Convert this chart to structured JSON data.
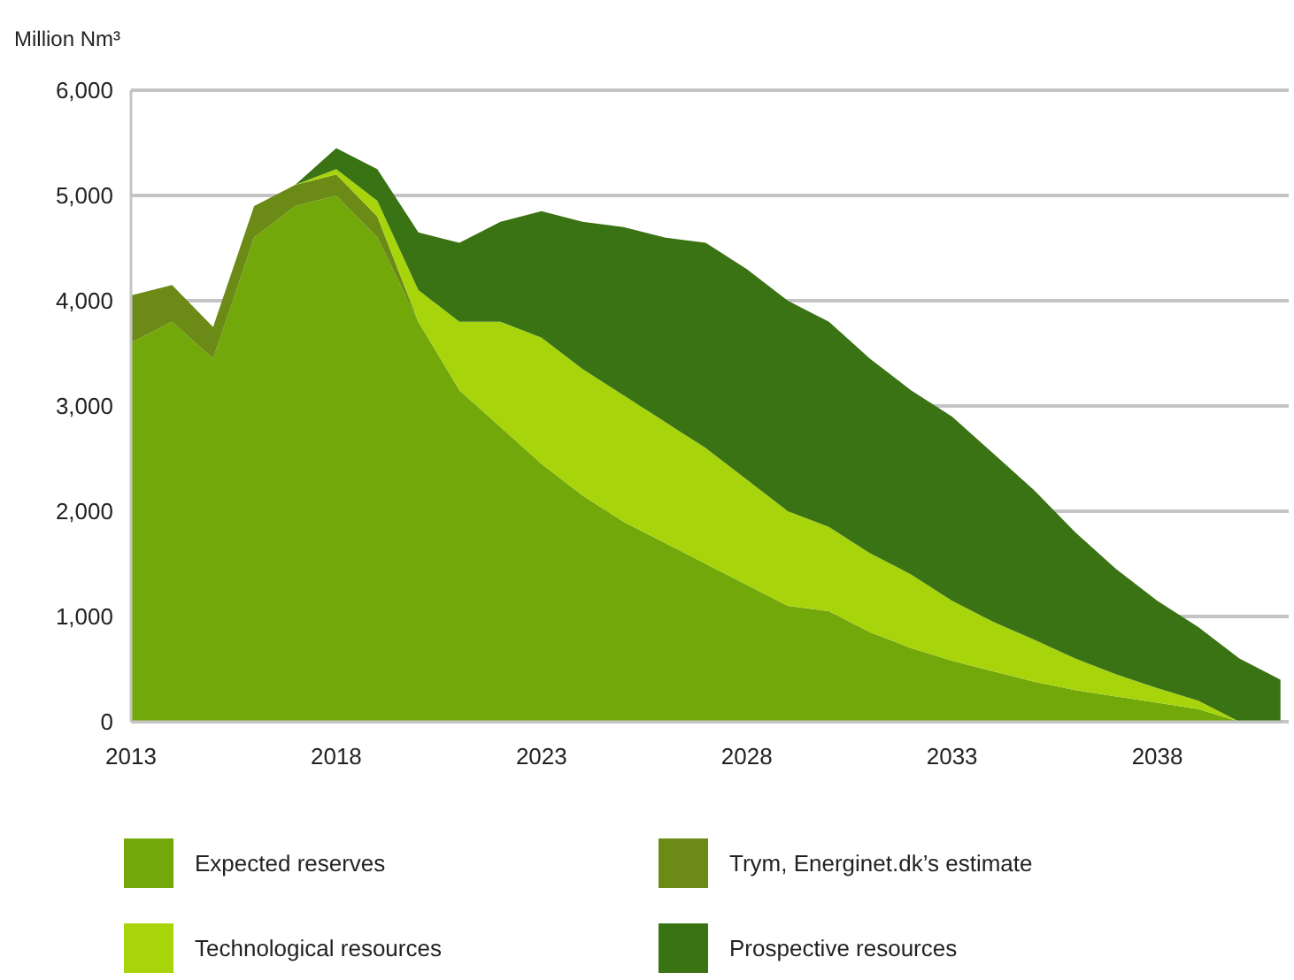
{
  "chart_data": {
    "type": "area",
    "stacked": true,
    "ylabel": "Million Nm³",
    "x": [
      2013,
      2014,
      2015,
      2016,
      2017,
      2018,
      2019,
      2020,
      2021,
      2022,
      2023,
      2024,
      2025,
      2026,
      2027,
      2028,
      2029,
      2030,
      2031,
      2032,
      2033,
      2034,
      2035,
      2036,
      2037,
      2038,
      2039,
      2040,
      2041
    ],
    "series": [
      {
        "name": "Expected reserves",
        "color": "#72a80a",
        "values": [
          3600,
          3800,
          3450,
          4600,
          4900,
          5000,
          4600,
          3800,
          3150,
          2800,
          2450,
          2150,
          1900,
          1700,
          1500,
          1300,
          1100,
          1050,
          850,
          700,
          580,
          480,
          380,
          300,
          240,
          180,
          120,
          0,
          0
        ]
      },
      {
        "name": "Trym, Energinet.dk’s estimate",
        "color": "#6b8a16",
        "values": [
          450,
          350,
          300,
          300,
          200,
          200,
          200,
          0,
          0,
          0,
          0,
          0,
          0,
          0,
          0,
          0,
          0,
          0,
          0,
          0,
          0,
          0,
          0,
          0,
          0,
          0,
          0,
          0,
          0
        ]
      },
      {
        "name": "Technological resources",
        "color": "#a8d40c",
        "values": [
          0,
          0,
          0,
          0,
          0,
          50,
          150,
          300,
          650,
          1000,
          1200,
          1200,
          1200,
          1150,
          1100,
          1000,
          900,
          800,
          750,
          700,
          570,
          470,
          400,
          300,
          210,
          140,
          80,
          0,
          0
        ]
      },
      {
        "name": "Prospective resources",
        "color": "#3a7314",
        "values": [
          0,
          0,
          0,
          0,
          0,
          200,
          300,
          550,
          750,
          950,
          1200,
          1400,
          1600,
          1750,
          1950,
          2000,
          2000,
          1950,
          1850,
          1750,
          1750,
          1600,
          1420,
          1200,
          1000,
          830,
          700,
          600,
          400
        ]
      }
    ],
    "xlim": [
      2013,
      2041.2
    ],
    "xticks": [
      2013,
      2018,
      2023,
      2028,
      2033,
      2038
    ],
    "ylim": [
      0,
      6000
    ],
    "yticks": [
      {
        "value": 0,
        "label": "0"
      },
      {
        "value": 1000,
        "label": "1,000"
      },
      {
        "value": 2000,
        "label": "2,000"
      },
      {
        "value": 3000,
        "label": "3,000"
      },
      {
        "value": 4000,
        "label": "4,000"
      },
      {
        "value": 5000,
        "label": "5,000"
      },
      {
        "value": 6000,
        "label": "6,000"
      }
    ],
    "grid": "y",
    "legend": "bottom"
  }
}
